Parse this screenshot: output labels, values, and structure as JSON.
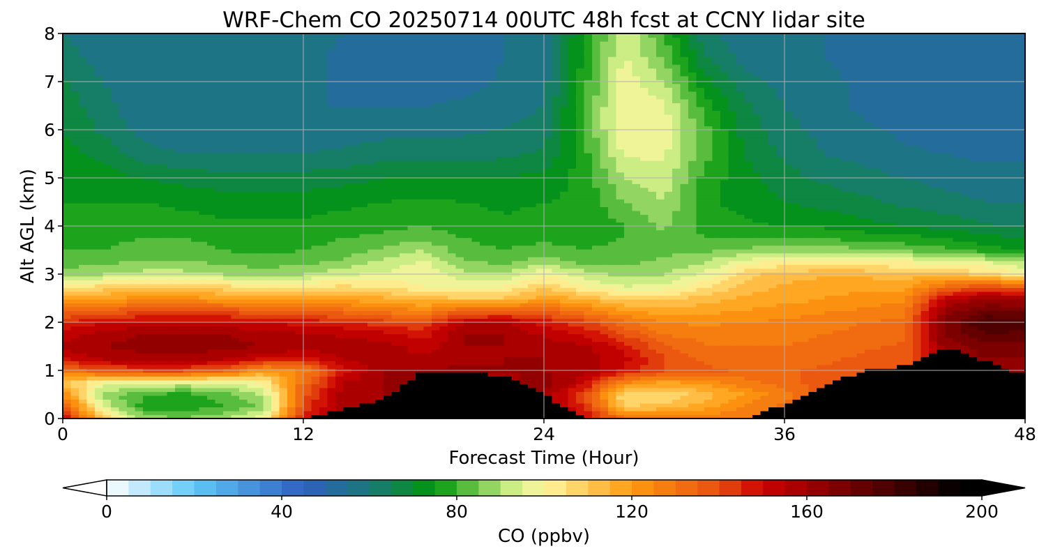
{
  "chart_data": {
    "type": "heatmap",
    "title": "WRF-Chem CO  20250714 00UTC 48h fcst at CCNY lidar site",
    "xlabel": "Forecast Time (Hour)",
    "ylabel": "Alt AGL (km)",
    "xlim": [
      0,
      48
    ],
    "ylim": [
      0,
      8
    ],
    "xticks": [
      0,
      12,
      24,
      36,
      48
    ],
    "yticks": [
      0,
      1,
      2,
      3,
      4,
      5,
      6,
      7,
      8
    ],
    "grid": true,
    "z_unit": "ppbv",
    "colorbar": {
      "label": "CO  (ppbv)",
      "range": [
        0,
        200
      ],
      "ticks": [
        0,
        40,
        80,
        120,
        160,
        200
      ],
      "extend": "both",
      "min_arrow_color": "#ffffff",
      "max_arrow_color": "#000000",
      "colormap_stops": [
        {
          "value": 0,
          "color": "#ffffff"
        },
        {
          "value": 20,
          "color": "#60c8f8"
        },
        {
          "value": 45,
          "color": "#2e60c0"
        },
        {
          "value": 60,
          "color": "#1a7878"
        },
        {
          "value": 75,
          "color": "#00960a"
        },
        {
          "value": 92,
          "color": "#c8ec82"
        },
        {
          "value": 100,
          "color": "#fff8a0"
        },
        {
          "value": 120,
          "color": "#ff9a10"
        },
        {
          "value": 140,
          "color": "#e85010"
        },
        {
          "value": 150,
          "color": "#cc0000"
        },
        {
          "value": 175,
          "color": "#5a0000"
        },
        {
          "value": 195,
          "color": "#000000"
        }
      ]
    },
    "x_hours": [
      0,
      2,
      4,
      6,
      8,
      10,
      12,
      14,
      16,
      18,
      20,
      22,
      24,
      26,
      28,
      30,
      32,
      34,
      36,
      38,
      40,
      42,
      44,
      46,
      48
    ],
    "y_km": [
      0,
      0.25,
      0.5,
      0.75,
      1,
      1.25,
      1.5,
      1.75,
      2,
      2.25,
      2.5,
      2.75,
      3,
      3.25,
      3.5,
      3.75,
      4,
      4.5,
      5,
      5.5,
      6,
      6.5,
      7,
      7.5,
      8
    ],
    "ground_mask_top_km": [
      0,
      0,
      0,
      0,
      0,
      0,
      0,
      0.2,
      0.4,
      1,
      0.95,
      0.9,
      0.5,
      0,
      0,
      0,
      0,
      0,
      0.3,
      0.7,
      1,
      1.1,
      1.5,
      1.2,
      0.9
    ],
    "co_ppbv": [
      [
        152,
        110,
        88,
        86,
        90,
        98,
        148,
        163,
        160,
        160,
        158,
        158,
        160,
        152,
        132,
        128,
        128,
        130,
        135,
        142,
        140,
        140,
        155,
        170,
        175
      ],
      [
        138,
        95,
        78,
        76,
        80,
        86,
        140,
        160,
        160,
        160,
        158,
        158,
        160,
        145,
        110,
        112,
        118,
        125,
        132,
        140,
        140,
        140,
        155,
        170,
        172
      ],
      [
        126,
        88,
        80,
        78,
        82,
        90,
        138,
        158,
        160,
        160,
        158,
        158,
        160,
        140,
        105,
        106,
        112,
        120,
        128,
        138,
        140,
        140,
        155,
        170,
        170
      ],
      [
        112,
        98,
        96,
        94,
        95,
        100,
        132,
        155,
        160,
        160,
        160,
        158,
        162,
        152,
        125,
        118,
        122,
        128,
        132,
        138,
        140,
        140,
        155,
        168,
        166
      ],
      [
        130,
        138,
        140,
        140,
        136,
        120,
        126,
        148,
        160,
        160,
        162,
        160,
        160,
        158,
        148,
        140,
        136,
        134,
        134,
        136,
        138,
        138,
        155,
        165,
        162
      ],
      [
        150,
        156,
        158,
        158,
        156,
        150,
        148,
        156,
        158,
        156,
        158,
        160,
        160,
        158,
        152,
        140,
        134,
        132,
        132,
        134,
        136,
        138,
        158,
        165,
        164
      ],
      [
        156,
        160,
        162,
        162,
        162,
        160,
        158,
        158,
        158,
        152,
        160,
        160,
        158,
        156,
        148,
        136,
        130,
        130,
        130,
        132,
        134,
        136,
        162,
        168,
        168
      ],
      [
        152,
        158,
        160,
        160,
        160,
        158,
        156,
        154,
        152,
        148,
        160,
        160,
        154,
        150,
        140,
        130,
        128,
        128,
        128,
        130,
        132,
        134,
        166,
        174,
        174
      ],
      [
        145,
        150,
        152,
        152,
        152,
        150,
        148,
        146,
        142,
        140,
        154,
        156,
        148,
        142,
        132,
        125,
        124,
        125,
        126,
        128,
        130,
        132,
        166,
        180,
        178
      ],
      [
        132,
        136,
        138,
        138,
        138,
        136,
        134,
        132,
        128,
        125,
        134,
        134,
        134,
        128,
        120,
        116,
        118,
        120,
        122,
        124,
        126,
        128,
        162,
        170,
        168
      ],
      [
        118,
        120,
        122,
        122,
        120,
        118,
        118,
        117,
        116,
        112,
        110,
        110,
        118,
        114,
        108,
        108,
        112,
        116,
        118,
        120,
        122,
        124,
        152,
        160,
        158
      ],
      [
        103,
        106,
        108,
        108,
        106,
        104,
        104,
        106,
        104,
        100,
        100,
        100,
        108,
        100,
        95,
        96,
        104,
        112,
        116,
        118,
        118,
        118,
        132,
        138,
        134
      ],
      [
        88,
        90,
        92,
        92,
        90,
        88,
        90,
        94,
        96,
        98,
        92,
        90,
        100,
        92,
        88,
        90,
        96,
        108,
        112,
        114,
        114,
        112,
        112,
        108,
        100
      ],
      [
        82,
        84,
        86,
        86,
        84,
        82,
        84,
        86,
        92,
        96,
        86,
        84,
        88,
        84,
        84,
        86,
        90,
        98,
        102,
        104,
        102,
        100,
        98,
        95,
        90
      ],
      [
        80,
        80,
        82,
        82,
        80,
        79,
        80,
        82,
        86,
        90,
        82,
        80,
        82,
        80,
        82,
        84,
        84,
        86,
        88,
        88,
        86,
        84,
        82,
        78,
        74
      ],
      [
        78,
        79,
        80,
        80,
        79,
        78,
        78,
        80,
        82,
        84,
        80,
        78,
        79,
        78,
        80,
        84,
        80,
        80,
        80,
        80,
        78,
        77,
        75,
        72,
        70
      ],
      [
        76,
        77,
        78,
        77,
        76,
        76,
        76,
        77,
        78,
        80,
        78,
        76,
        77,
        76,
        80,
        86,
        78,
        76,
        75,
        74,
        72,
        70,
        68,
        66,
        64
      ],
      [
        75,
        75,
        75,
        74,
        73,
        73,
        73,
        74,
        75,
        76,
        75,
        74,
        75,
        76,
        85,
        90,
        76,
        73,
        70,
        68,
        66,
        64,
        62,
        60,
        60
      ],
      [
        74,
        73,
        70,
        68,
        67,
        67,
        67,
        68,
        70,
        70,
        70,
        70,
        72,
        77,
        90,
        93,
        78,
        72,
        67,
        64,
        62,
        60,
        58,
        57,
        57
      ],
      [
        72,
        68,
        62,
        60,
        60,
        60,
        60,
        61,
        63,
        63,
        63,
        64,
        66,
        78,
        96,
        96,
        82,
        70,
        64,
        60,
        58,
        56,
        55,
        54,
        54
      ],
      [
        70,
        64,
        58,
        56,
        56,
        56,
        56,
        57,
        58,
        58,
        59,
        60,
        62,
        80,
        100,
        98,
        82,
        68,
        62,
        58,
        56,
        54,
        52,
        50,
        51
      ],
      [
        68,
        62,
        56,
        55,
        55,
        55,
        55,
        55,
        55,
        55,
        56,
        58,
        60,
        80,
        100,
        96,
        78,
        66,
        60,
        56,
        54,
        52,
        51,
        50,
        50
      ],
      [
        66,
        60,
        56,
        55,
        56,
        56,
        56,
        54,
        52,
        52,
        53,
        56,
        58,
        78,
        98,
        90,
        72,
        62,
        58,
        56,
        54,
        52,
        52,
        52,
        52
      ],
      [
        62,
        58,
        56,
        56,
        57,
        57,
        56,
        54,
        52,
        52,
        52,
        55,
        58,
        76,
        96,
        84,
        66,
        58,
        56,
        55,
        54,
        53,
        53,
        53,
        53
      ],
      [
        60,
        58,
        57,
        57,
        58,
        58,
        57,
        55,
        53,
        53,
        53,
        55,
        58,
        75,
        94,
        80,
        62,
        56,
        55,
        55,
        54,
        54,
        54,
        54,
        54
      ]
    ]
  }
}
